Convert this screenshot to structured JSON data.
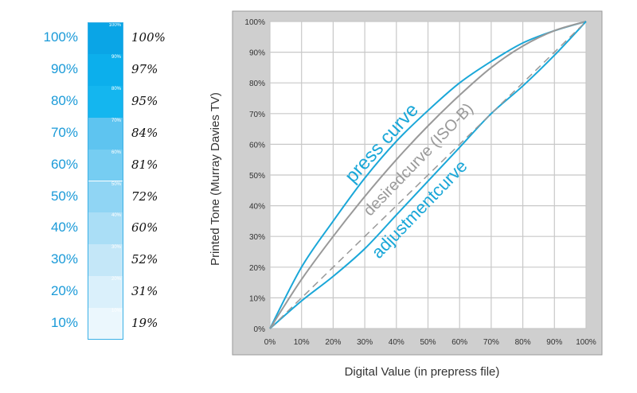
{
  "scale": {
    "labels": [
      "100%",
      "90%",
      "80%",
      "70%",
      "60%",
      "50%",
      "40%",
      "30%",
      "20%",
      "10%"
    ],
    "handwritten": [
      "100%",
      "97%",
      "95%",
      "84%",
      "81%",
      "72%",
      "60%",
      "52%",
      "31%",
      "19%"
    ],
    "colors": [
      "#0aa5e6",
      "#0cafec",
      "#14b6ef",
      "#5ec4f0",
      "#76cdf2",
      "#90d5f4",
      "#aadef6",
      "#c4e7f8",
      "#daf0fb",
      "#ebf7fd"
    ]
  },
  "chart_data": {
    "type": "line",
    "xlabel": "Digital Value (in prepress file)",
    "ylabel": "Printed Tone (Murray Davies TV)",
    "xlim": [
      0,
      100
    ],
    "ylim": [
      0,
      100
    ],
    "grid": true,
    "xticks": [
      "0%",
      "10%",
      "20%",
      "30%",
      "40%",
      "50%",
      "60%",
      "70%",
      "80%",
      "90%",
      "100%"
    ],
    "yticks": [
      "0%",
      "10%",
      "20%",
      "30%",
      "40%",
      "50%",
      "60%",
      "70%",
      "80%",
      "90%",
      "100%"
    ],
    "x": [
      0,
      10,
      20,
      30,
      40,
      50,
      60,
      70,
      80,
      90,
      100
    ],
    "series": [
      {
        "name": "press curve",
        "color": "#1aa7d8",
        "values": [
          0,
          20,
          35,
          49,
          61,
          71,
          80,
          87,
          93,
          97,
          100
        ]
      },
      {
        "name": "desiredcurve (ISO-B)",
        "color": "#999999",
        "values": [
          0,
          16,
          30,
          43,
          55,
          66,
          76,
          85,
          92,
          97,
          100
        ]
      },
      {
        "name": "adjustmentcurve",
        "color": "#1aa7d8",
        "values": [
          0,
          9,
          17,
          26,
          37,
          48,
          59,
          70,
          79,
          89,
          100
        ]
      },
      {
        "color": "#999999",
        "dashed": true,
        "values": [
          0,
          10,
          20,
          30,
          40,
          50,
          60,
          70,
          80,
          90,
          100
        ]
      }
    ]
  }
}
